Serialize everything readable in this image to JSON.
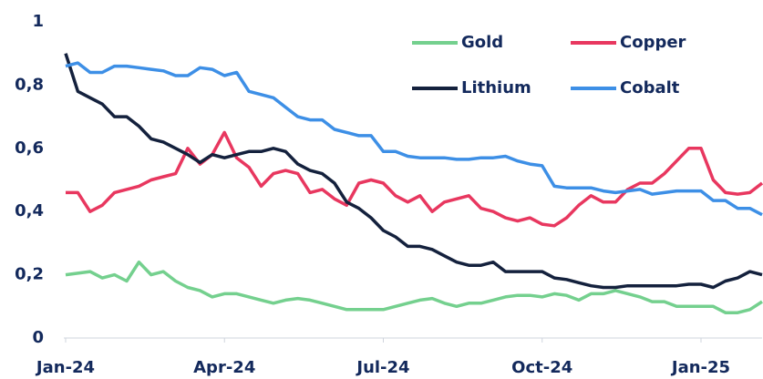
{
  "chart_data": {
    "type": "line",
    "categories": [
      "Jan-24",
      null,
      null,
      null,
      null,
      null,
      null,
      null,
      null,
      null,
      null,
      null,
      null,
      "Apr-24",
      null,
      null,
      null,
      null,
      null,
      null,
      null,
      null,
      null,
      null,
      null,
      null,
      "Jul-24",
      null,
      null,
      null,
      null,
      null,
      null,
      null,
      null,
      null,
      null,
      null,
      null,
      "Oct-24",
      null,
      null,
      null,
      null,
      null,
      null,
      null,
      null,
      null,
      null,
      null,
      null,
      "Jan-25",
      null,
      null,
      null,
      null,
      null
    ],
    "series": [
      {
        "name": "Gold",
        "color": "#74d08e",
        "values": [
          0.2,
          0.205,
          0.21,
          0.19,
          0.2,
          0.18,
          0.24,
          0.2,
          0.21,
          0.18,
          0.16,
          0.15,
          0.13,
          0.14,
          0.14,
          0.13,
          0.12,
          0.11,
          0.12,
          0.125,
          0.12,
          0.11,
          0.1,
          0.09,
          0.09,
          0.09,
          0.09,
          0.1,
          0.11,
          0.12,
          0.125,
          0.11,
          0.1,
          0.11,
          0.11,
          0.12,
          0.13,
          0.135,
          0.135,
          0.13,
          0.14,
          0.135,
          0.12,
          0.14,
          0.14,
          0.15,
          0.14,
          0.13,
          0.115,
          0.115,
          0.1,
          0.1,
          0.1,
          0.1,
          0.08,
          0.08,
          0.09,
          0.115
        ]
      },
      {
        "name": "Copper",
        "color": "#e8375f",
        "values": [
          0.46,
          0.46,
          0.4,
          0.42,
          0.46,
          0.47,
          0.48,
          0.5,
          0.51,
          0.52,
          0.6,
          0.55,
          0.58,
          0.65,
          0.57,
          0.54,
          0.48,
          0.52,
          0.53,
          0.52,
          0.46,
          0.47,
          0.44,
          0.42,
          0.49,
          0.5,
          0.49,
          0.45,
          0.43,
          0.45,
          0.4,
          0.43,
          0.44,
          0.45,
          0.41,
          0.4,
          0.38,
          0.37,
          0.38,
          0.36,
          0.355,
          0.38,
          0.42,
          0.45,
          0.43,
          0.43,
          0.47,
          0.49,
          0.49,
          0.52,
          0.56,
          0.6,
          0.6,
          0.5,
          0.46,
          0.455,
          0.46,
          0.49
        ]
      },
      {
        "name": "Lithium",
        "color": "#14213d",
        "values": [
          0.9,
          0.78,
          0.76,
          0.74,
          0.7,
          0.7,
          0.67,
          0.63,
          0.62,
          0.6,
          0.58,
          0.555,
          0.58,
          0.57,
          0.58,
          0.59,
          0.59,
          0.6,
          0.59,
          0.55,
          0.53,
          0.52,
          0.49,
          0.43,
          0.41,
          0.38,
          0.34,
          0.32,
          0.29,
          0.29,
          0.28,
          0.26,
          0.24,
          0.23,
          0.23,
          0.24,
          0.21,
          0.21,
          0.21,
          0.21,
          0.19,
          0.185,
          0.175,
          0.165,
          0.16,
          0.16,
          0.165,
          0.165,
          0.165,
          0.165,
          0.165,
          0.17,
          0.17,
          0.16,
          0.18,
          0.19,
          0.21,
          0.2
        ]
      },
      {
        "name": "Cobalt",
        "color": "#3d8fe6",
        "values": [
          0.86,
          0.87,
          0.84,
          0.84,
          0.86,
          0.86,
          0.855,
          0.85,
          0.845,
          0.83,
          0.83,
          0.855,
          0.85,
          0.83,
          0.84,
          0.78,
          0.77,
          0.76,
          0.73,
          0.7,
          0.69,
          0.69,
          0.66,
          0.65,
          0.64,
          0.64,
          0.59,
          0.59,
          0.575,
          0.57,
          0.57,
          0.57,
          0.565,
          0.565,
          0.57,
          0.57,
          0.575,
          0.56,
          0.55,
          0.545,
          0.48,
          0.475,
          0.475,
          0.475,
          0.465,
          0.46,
          0.465,
          0.47,
          0.455,
          0.46,
          0.465,
          0.465,
          0.465,
          0.435,
          0.435,
          0.41,
          0.41,
          0.39
        ]
      }
    ],
    "ylim": [
      0,
      1
    ],
    "yticks": [
      0,
      {
        "value": 0.2,
        "label": "0,2"
      },
      {
        "value": 0.4,
        "label": "0,4"
      },
      {
        "value": 0.6,
        "label": "0,6"
      },
      {
        "value": 0.8,
        "label": "0,8"
      },
      1
    ],
    "legend": "top-right"
  }
}
